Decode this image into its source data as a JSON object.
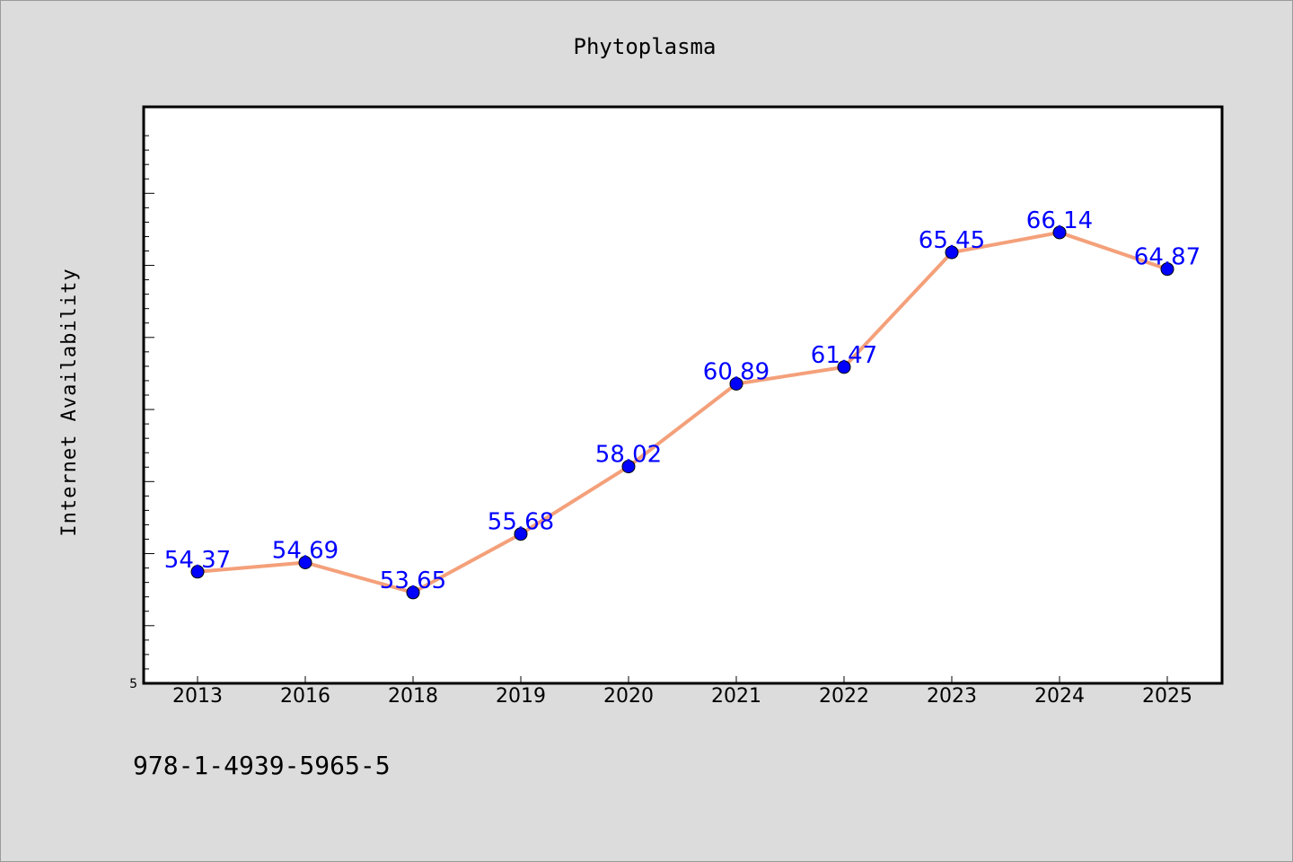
{
  "chart_data": {
    "type": "line",
    "title": "Phytoplasma",
    "xlabel": "",
    "ylabel": "Internet Availability",
    "categories": [
      "2013",
      "2016",
      "2018",
      "2019",
      "2020",
      "2021",
      "2022",
      "2023",
      "2024",
      "2025"
    ],
    "series": [
      {
        "values": [
          54.37,
          54.69,
          53.65,
          55.68,
          58.02,
          60.89,
          61.47,
          65.45,
          66.14,
          64.87
        ]
      }
    ],
    "ylim": [
      50.5,
      70.5
    ],
    "y_tick_label_min": "5",
    "grid": false,
    "line_color": "#f4a07a",
    "marker_color": "#0000ff",
    "label_color": "#0000ff"
  },
  "footer": {
    "isbn": "978-1-4939-5965-5"
  }
}
